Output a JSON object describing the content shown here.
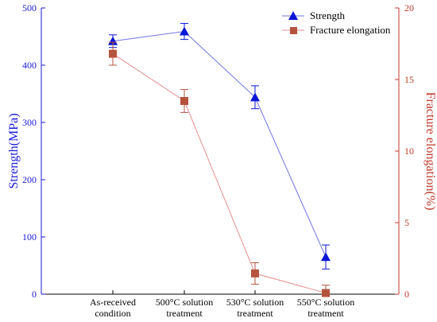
{
  "chart_data": {
    "type": "line",
    "categories": [
      [
        "As-received",
        "condition"
      ],
      [
        "500°C solution",
        "treatment"
      ],
      [
        "530°C solution",
        "treatment"
      ],
      [
        "550°C solution",
        "treatment"
      ]
    ],
    "series": [
      {
        "name": "Strength",
        "axis": "left",
        "marker": "triangle",
        "color": "#0a16d6",
        "line_color": "#6f74e0",
        "values": [
          442,
          459,
          344,
          65
        ],
        "errors": [
          11,
          14,
          20,
          21
        ]
      },
      {
        "name": "Fracture elongation",
        "axis": "right",
        "marker": "square",
        "color": "#b5533c",
        "line_color": "#e58f8f",
        "values": [
          16.8,
          13.5,
          1.45,
          0.08
        ],
        "errors": [
          0.8,
          0.8,
          0.75,
          0.55
        ]
      }
    ],
    "ylabel_left": "Strength(MPa)",
    "ylabel_right": "Fracture elongation(%)",
    "ylim_left": [
      0,
      500
    ],
    "ylim_right": [
      0,
      20
    ],
    "yticks_left": [
      "0",
      "100",
      "200",
      "300",
      "400",
      "500"
    ],
    "yticks_right": [
      "0",
      "5",
      "10",
      "15",
      "20"
    ],
    "left_axis_color": "#1a1ad6",
    "right_axis_color": "#c0392b",
    "legend_position": "top-right",
    "grid": false
  }
}
